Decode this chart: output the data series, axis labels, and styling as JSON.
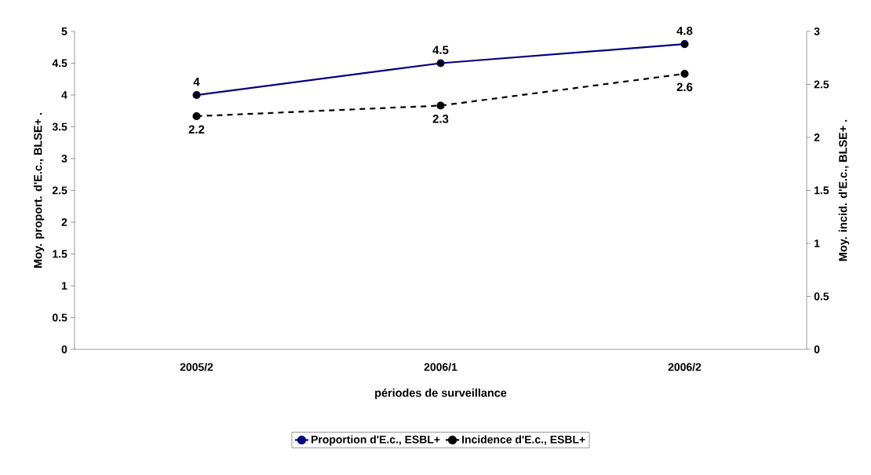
{
  "chart_data": {
    "type": "line",
    "categories": [
      "2005/2",
      "2006/1",
      "2006/2"
    ],
    "series": [
      {
        "name": "Proportion d'E.c., ESBL+",
        "color": "#000080",
        "values": [
          4,
          4.5,
          4.8
        ],
        "line_style": "solid"
      },
      {
        "name": "Incidence d'E.c., ESBL+",
        "color": "#000000",
        "values": [
          2.2,
          2.3,
          2.6
        ],
        "line_style": "dashed",
        "axis": "y2"
      }
    ],
    "xlabel": "périodes de surveillance",
    "ylabel": "Moy. proport. d'E.c., BLSE+ .",
    "y2label": "Moy. incid. d'E.c., BLSE+ .",
    "ylim": [
      0,
      5
    ],
    "yticks": [
      0,
      0.5,
      1,
      1.5,
      2,
      2.5,
      3,
      3.5,
      4,
      4.5,
      5
    ],
    "y2lim": [
      0,
      3
    ],
    "y2ticks": [
      0,
      0.5,
      1,
      1.5,
      2,
      2.5,
      3
    ],
    "data_labels": true,
    "marker": "circle",
    "legend": "bottom",
    "grid": false
  }
}
